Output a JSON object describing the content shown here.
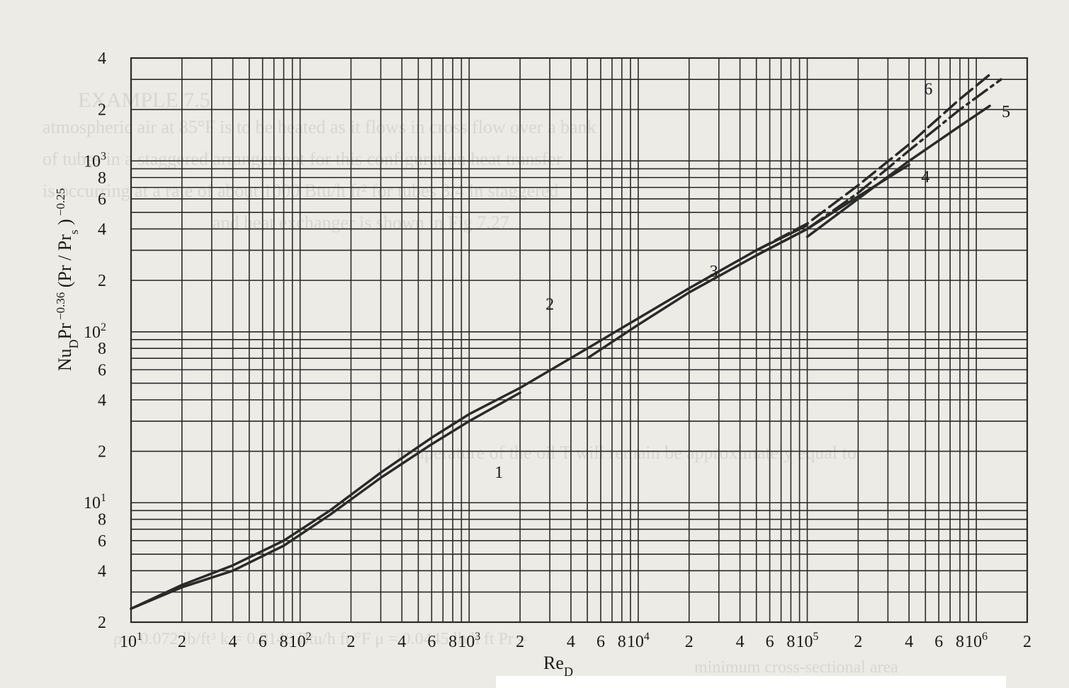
{
  "chart_data": {
    "type": "line",
    "xscale": "log",
    "yscale": "log",
    "xlim": [
      10,
      2000000
    ],
    "ylim": [
      2,
      4000
    ],
    "grid": true,
    "xlabel": "Re_D",
    "ylabel": "Nu_D Pr^-0.36 (Pr/Pr_s)^-0.25",
    "x_ticks": [
      {
        "value": 10,
        "base": "10",
        "exp": "1"
      },
      {
        "value": 20,
        "base": "2",
        "exp": ""
      },
      {
        "value": 40,
        "base": "4",
        "exp": ""
      },
      {
        "value": 60,
        "base": "6",
        "exp": ""
      },
      {
        "value": 80,
        "base": "8",
        "exp": ""
      },
      {
        "value": 100,
        "base": "10",
        "exp": "2"
      },
      {
        "value": 200,
        "base": "2",
        "exp": ""
      },
      {
        "value": 400,
        "base": "4",
        "exp": ""
      },
      {
        "value": 600,
        "base": "6",
        "exp": ""
      },
      {
        "value": 800,
        "base": "8",
        "exp": ""
      },
      {
        "value": 1000,
        "base": "10",
        "exp": "3"
      },
      {
        "value": 2000,
        "base": "2",
        "exp": ""
      },
      {
        "value": 4000,
        "base": "4",
        "exp": ""
      },
      {
        "value": 6000,
        "base": "6",
        "exp": ""
      },
      {
        "value": 8000,
        "base": "8",
        "exp": ""
      },
      {
        "value": 10000,
        "base": "10",
        "exp": "4"
      },
      {
        "value": 20000,
        "base": "2",
        "exp": ""
      },
      {
        "value": 40000,
        "base": "4",
        "exp": ""
      },
      {
        "value": 60000,
        "base": "6",
        "exp": ""
      },
      {
        "value": 80000,
        "base": "8",
        "exp": ""
      },
      {
        "value": 100000,
        "base": "10",
        "exp": "5"
      },
      {
        "value": 200000,
        "base": "2",
        "exp": ""
      },
      {
        "value": 400000,
        "base": "4",
        "exp": ""
      },
      {
        "value": 600000,
        "base": "6",
        "exp": ""
      },
      {
        "value": 800000,
        "base": "8",
        "exp": ""
      },
      {
        "value": 1000000,
        "base": "10",
        "exp": "6"
      },
      {
        "value": 2000000,
        "base": "2",
        "exp": ""
      }
    ],
    "y_ticks": [
      {
        "value": 2,
        "base": "2",
        "exp": ""
      },
      {
        "value": 4,
        "base": "4",
        "exp": ""
      },
      {
        "value": 6,
        "base": "6",
        "exp": ""
      },
      {
        "value": 8,
        "base": "8",
        "exp": ""
      },
      {
        "value": 10,
        "base": "10",
        "exp": "1"
      },
      {
        "value": 20,
        "base": "2",
        "exp": ""
      },
      {
        "value": 40,
        "base": "4",
        "exp": ""
      },
      {
        "value": 60,
        "base": "6",
        "exp": ""
      },
      {
        "value": 80,
        "base": "8",
        "exp": ""
      },
      {
        "value": 100,
        "base": "10",
        "exp": "2"
      },
      {
        "value": 200,
        "base": "2",
        "exp": ""
      },
      {
        "value": 400,
        "base": "4",
        "exp": ""
      },
      {
        "value": 600,
        "base": "6",
        "exp": ""
      },
      {
        "value": 800,
        "base": "8",
        "exp": ""
      },
      {
        "value": 1000,
        "base": "10",
        "exp": "3"
      },
      {
        "value": 2000,
        "base": "2",
        "exp": ""
      },
      {
        "value": 4000,
        "base": "4",
        "exp": ""
      }
    ],
    "series": [
      {
        "name": "1",
        "dash": "solid",
        "x": [
          10,
          20,
          40,
          80,
          150,
          300,
          600,
          1000,
          2000
        ],
        "y": [
          2.4,
          3.2,
          4.0,
          5.6,
          8.5,
          14,
          22,
          30,
          44
        ]
      },
      {
        "name": "2",
        "dash": "solid",
        "x": [
          10,
          20,
          40,
          80,
          150,
          300,
          600,
          1000,
          2000,
          5000,
          10000,
          20000,
          50000,
          100000
        ],
        "y": [
          2.4,
          3.3,
          4.3,
          6.0,
          9.0,
          15,
          24,
          33,
          47,
          80,
          120,
          180,
          300,
          420
        ]
      },
      {
        "name": "3",
        "dash": "solid",
        "x": [
          5000,
          10000,
          20000,
          50000,
          100000,
          200000,
          400000
        ],
        "y": [
          70,
          110,
          170,
          280,
          400,
          620,
          950
        ]
      },
      {
        "name": "4",
        "dash": "solid",
        "x": [
          100000,
          200000,
          400000,
          800000,
          1200000
        ],
        "y": [
          360,
          600,
          1000,
          1600,
          2100
        ]
      },
      {
        "name": "5",
        "dash": "dashdot",
        "x": [
          50000,
          100000,
          200000,
          400000,
          800000,
          1400000
        ],
        "y": [
          280,
          400,
          650,
          1150,
          2000,
          3000
        ]
      },
      {
        "name": "6",
        "dash": "dashed",
        "x": [
          50000,
          100000,
          200000,
          400000,
          800000,
          1200000
        ],
        "y": [
          300,
          430,
          720,
          1250,
          2300,
          3200
        ]
      }
    ],
    "annotations": [
      {
        "text": "1",
        "x": 1500,
        "y": 14
      },
      {
        "text": "2",
        "x": 3000,
        "y": 135
      },
      {
        "text": "3",
        "x": 28000,
        "y": 210
      },
      {
        "text": "4",
        "x": 500000,
        "y": 750
      },
      {
        "text": "5",
        "x": 1500000,
        "y": 1800
      },
      {
        "text": "6",
        "x": 520000,
        "y": 2450
      }
    ]
  },
  "ghost_text": [
    "EXAMPLE 7.5",
    "atmospheric air at 85°F is to be heated as it flows in cross flow over a bank",
    "of tubes in a staggered arrangement for this configuration heat transfer",
    "is occurring at a rate of about 1000 Btu/h ft² for tubes 3/4 in staggered",
    "and heat exchanger is shown in Fig 7.27",
    "temperature of the oil T will remain be approximately equal to",
    "ρ = 0.072 lb/ft³   k = 0.0146 Btu/h ft °F   μ = 0.0445 lb/h ft   Pr =",
    "minimum cross-sectional area"
  ]
}
